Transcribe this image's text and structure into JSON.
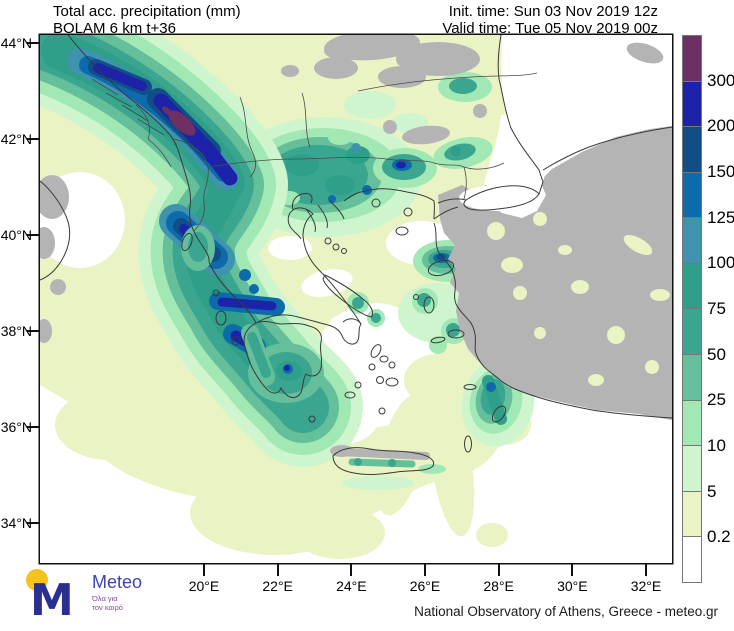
{
  "header": {
    "title": "Total acc. precipitation (mm)",
    "model": "BOLAM 6 km t+36",
    "init_time": "Init. time: Sun 03 Nov 2019 12z",
    "valid_time": "Valid time: Tue 05 Nov 2019 00z"
  },
  "axes": {
    "lat_labels": [
      "44°N",
      "42°N",
      "40°N",
      "38°N",
      "36°N",
      "34°N"
    ],
    "lon_labels": [
      "20°E",
      "22°E",
      "24°E",
      "26°E",
      "28°E",
      "30°E",
      "32°E"
    ]
  },
  "colorbar": {
    "levels": [
      {
        "color": "#6e2f62",
        "label": "300"
      },
      {
        "color": "#1c23a8",
        "label": "200"
      },
      {
        "color": "#114e88",
        "label": "150"
      },
      {
        "color": "#0d6bab",
        "label": "125"
      },
      {
        "color": "#3f93af",
        "label": "100"
      },
      {
        "color": "#2f9f89",
        "label": "75"
      },
      {
        "color": "#3aa690",
        "label": "50"
      },
      {
        "color": "#64bf9a",
        "label": "25"
      },
      {
        "color": "#a2e8b4",
        "label": "10"
      },
      {
        "color": "#cff5cf",
        "label": "5"
      },
      {
        "color": "#e9f3c4",
        "label": "0.2"
      },
      {
        "color": "#ffffff",
        "label": ""
      }
    ]
  },
  "map_colors": {
    "no_data_gray": "#b4b4b4",
    "sea_white": "#ffffff",
    "coastline": "#3a3a3a"
  },
  "logo": {
    "brand": "Meteo",
    "tagline_line1": "Όλα για",
    "tagline_line2": "τον καιρό",
    "monogram": "M"
  },
  "footer": {
    "attribution": "National Observatory of Athens, Greece - meteo.gr"
  }
}
